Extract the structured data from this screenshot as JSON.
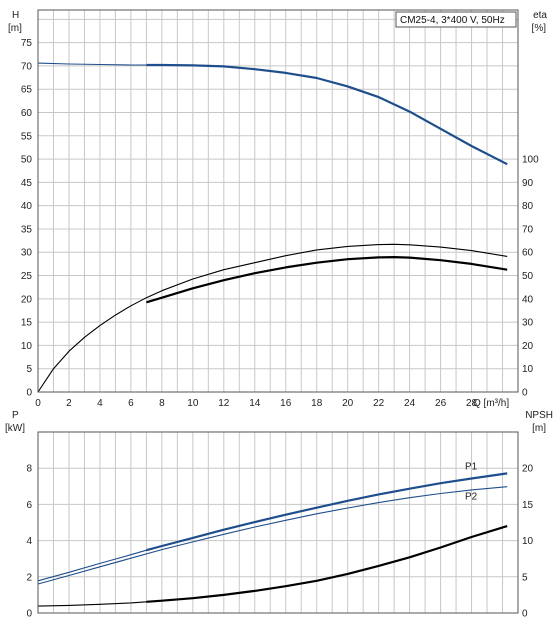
{
  "chart_data": [
    {
      "type": "line",
      "title": "CM25-4, 3*400 V, 50Hz",
      "ylabel": "H",
      "yunit": "[m]",
      "y2label": "eta",
      "y2unit": "[%]",
      "xlabel": "Q [m³/h]",
      "xlim": [
        0,
        31
      ],
      "ylim": [
        0,
        82
      ],
      "y2lim": [
        0,
        164
      ],
      "xticks": [
        0,
        2,
        4,
        6,
        8,
        10,
        12,
        14,
        16,
        18,
        20,
        22,
        24,
        26,
        28
      ],
      "yticks": [
        0,
        5,
        10,
        15,
        20,
        25,
        30,
        35,
        40,
        45,
        50,
        55,
        60,
        65,
        70,
        75
      ],
      "y2ticks": [
        0,
        10,
        20,
        30,
        40,
        50,
        60,
        70,
        80,
        90,
        100
      ],
      "grid": true,
      "colors": {
        "head": "#1f4e8c",
        "eta": "#000000",
        "grid": "#c8c8c8"
      },
      "series": [
        {
          "key": "head_thin",
          "axis": "left",
          "style": "thin",
          "color": "#1f4e8c",
          "x": [
            0,
            2,
            4,
            6,
            7
          ],
          "y": [
            70.6,
            70.4,
            70.3,
            70.2,
            70.2
          ]
        },
        {
          "key": "head_thick",
          "axis": "left",
          "style": "thick",
          "color": "#1f4e8c",
          "x": [
            7,
            8,
            10,
            12,
            14,
            16,
            18,
            20,
            22,
            24,
            26,
            28,
            30.3
          ],
          "y": [
            70.2,
            70.2,
            70.1,
            69.9,
            69.3,
            68.5,
            67.4,
            65.6,
            63.3,
            60.2,
            56.5,
            52.8,
            48.9
          ]
        },
        {
          "key": "eta_thin",
          "axis": "right",
          "style": "thin",
          "color": "#000000",
          "x": [
            0,
            1,
            2,
            3,
            4,
            5,
            6,
            7,
            8,
            10,
            12,
            14,
            16,
            18,
            20,
            22,
            23,
            24,
            26,
            28,
            30.3
          ],
          "y": [
            0,
            10,
            17.5,
            23.5,
            28.5,
            33,
            37,
            40.5,
            43.5,
            48.5,
            52.5,
            55.5,
            58.5,
            61,
            62.5,
            63.3,
            63.4,
            63.2,
            62.2,
            60.7,
            58.2
          ]
        },
        {
          "key": "eta_thick",
          "axis": "right",
          "style": "thick",
          "color": "#000000",
          "x": [
            7,
            8,
            10,
            12,
            14,
            16,
            18,
            20,
            22,
            23,
            24,
            26,
            28,
            30.3
          ],
          "y": [
            38.5,
            40.5,
            44.5,
            48,
            51,
            53.5,
            55.5,
            57,
            57.8,
            57.9,
            57.7,
            56.6,
            55,
            52.5
          ]
        }
      ]
    },
    {
      "type": "line",
      "ylabel": "P",
      "yunit": "[kW]",
      "y2label": "NPSH",
      "y2unit": "[m]",
      "xlim": [
        0,
        31
      ],
      "ylim": [
        0,
        10
      ],
      "y2lim": [
        0,
        25
      ],
      "yticks": [
        0,
        2,
        4,
        6,
        8
      ],
      "y2ticks": [
        0,
        5,
        10,
        15,
        20
      ],
      "xticks": [
        0,
        2,
        4,
        6,
        8,
        10,
        12,
        14,
        16,
        18,
        20,
        22,
        24,
        26,
        28
      ],
      "grid": true,
      "colors": {
        "p1": "#1f4e8c",
        "p2": "#1f4e8c",
        "npsh": "#000000"
      },
      "series": [
        {
          "key": "p1_thin",
          "axis": "left",
          "style": "thin",
          "color": "#1f4e8c",
          "x": [
            0,
            2,
            4,
            6,
            7
          ],
          "y": [
            1.78,
            2.25,
            2.74,
            3.22,
            3.47
          ]
        },
        {
          "key": "p1_thick",
          "name": "P1",
          "axis": "left",
          "style": "thick",
          "color": "#1f4e8c",
          "x": [
            7,
            8,
            10,
            12,
            14,
            16,
            18,
            20,
            22,
            24,
            26,
            28,
            30.3
          ],
          "y": [
            3.47,
            3.7,
            4.15,
            4.6,
            5.02,
            5.43,
            5.82,
            6.2,
            6.55,
            6.87,
            7.17,
            7.43,
            7.71
          ]
        },
        {
          "key": "p2",
          "name": "P2",
          "axis": "left",
          "style": "thin",
          "color": "#1f4e8c",
          "x": [
            0,
            2,
            4,
            6,
            8,
            10,
            12,
            14,
            16,
            18,
            20,
            22,
            24,
            26,
            28,
            30.3
          ],
          "y": [
            1.6,
            2.07,
            2.55,
            3.03,
            3.5,
            3.93,
            4.35,
            4.75,
            5.12,
            5.48,
            5.8,
            6.1,
            6.37,
            6.6,
            6.8,
            6.98
          ]
        },
        {
          "key": "npsh_thin",
          "axis": "right",
          "style": "thin",
          "color": "#000000",
          "x": [
            0,
            2,
            4,
            6,
            7
          ],
          "y": [
            0.95,
            1.05,
            1.2,
            1.4,
            1.55
          ]
        },
        {
          "key": "npsh_thick",
          "axis": "right",
          "style": "thick",
          "color": "#000000",
          "x": [
            7,
            8,
            10,
            12,
            14,
            16,
            18,
            20,
            22,
            24,
            26,
            28,
            30.3
          ],
          "y": [
            1.55,
            1.7,
            2.05,
            2.5,
            3.05,
            3.7,
            4.45,
            5.4,
            6.5,
            7.7,
            9.05,
            10.5,
            12.0
          ]
        }
      ]
    }
  ]
}
